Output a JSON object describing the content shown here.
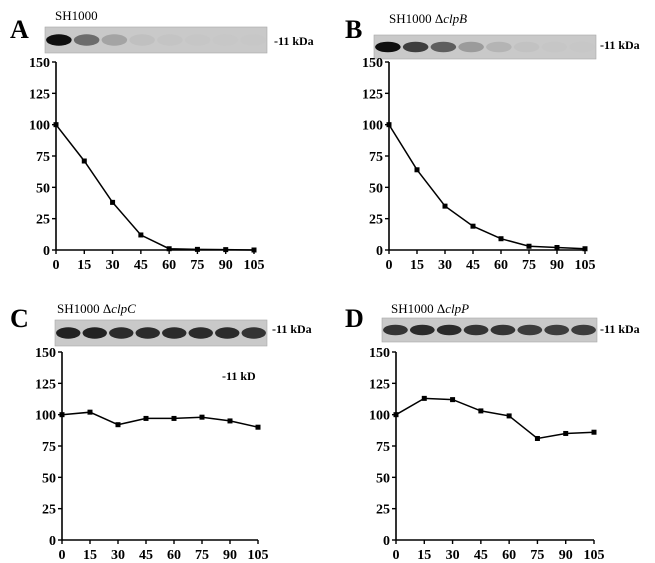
{
  "chart_data": [
    {
      "type": "line",
      "panel": "A",
      "strain": "SH1000",
      "strain_gene": "",
      "blot_label": "-11 kDa",
      "x": [
        0,
        15,
        30,
        45,
        60,
        75,
        90,
        105
      ],
      "values": [
        100,
        71,
        38,
        12,
        1,
        0.5,
        0.3,
        0
      ],
      "xticks": [
        "0",
        "15",
        "30",
        "45",
        "60",
        "75",
        "90",
        "105"
      ],
      "yticks": [
        "0",
        "25",
        "50",
        "75",
        "100",
        "125",
        "150"
      ],
      "xlim": [
        0,
        105
      ],
      "ylim": [
        0,
        150
      ],
      "band_intensity": [
        1.0,
        0.55,
        0.3,
        0.1,
        0.05,
        0.03,
        0.02,
        0.01
      ]
    },
    {
      "type": "line",
      "panel": "B",
      "strain": "SH1000 Δ",
      "strain_gene": "clpB",
      "blot_label": "-11 kDa",
      "x": [
        0,
        15,
        30,
        45,
        60,
        75,
        90,
        105
      ],
      "values": [
        100,
        64,
        35,
        19,
        9,
        3,
        2,
        1
      ],
      "xticks": [
        "0",
        "15",
        "30",
        "45",
        "60",
        "75",
        "90",
        "105"
      ],
      "yticks": [
        "0",
        "25",
        "50",
        "75",
        "100",
        "125",
        "150"
      ],
      "xlim": [
        0,
        105
      ],
      "ylim": [
        0,
        150
      ],
      "band_intensity": [
        1.0,
        0.75,
        0.6,
        0.35,
        0.2,
        0.08,
        0.04,
        0.02
      ]
    },
    {
      "type": "line",
      "panel": "C",
      "strain": "SH1000 Δ",
      "strain_gene": "clpC",
      "blot_label": "-11 kDa",
      "annotation": "-11 kD",
      "x": [
        0,
        15,
        30,
        45,
        60,
        75,
        90,
        105
      ],
      "values": [
        100,
        102,
        92,
        97,
        97,
        98,
        95,
        90
      ],
      "xticks": [
        "0",
        "15",
        "30",
        "45",
        "60",
        "75",
        "90",
        "105"
      ],
      "yticks": [
        "0",
        "25",
        "50",
        "75",
        "100",
        "125",
        "150"
      ],
      "xlim": [
        0,
        105
      ],
      "ylim": [
        0,
        150
      ],
      "band_intensity": [
        0.9,
        0.9,
        0.85,
        0.85,
        0.85,
        0.85,
        0.85,
        0.8
      ]
    },
    {
      "type": "line",
      "panel": "D",
      "strain": "SH1000 Δ",
      "strain_gene": "clpP",
      "blot_label": "-11 kDa",
      "x": [
        0,
        15,
        30,
        45,
        60,
        75,
        90,
        105
      ],
      "values": [
        100,
        113,
        112,
        103,
        99,
        81,
        85,
        86
      ],
      "xticks": [
        "0",
        "15",
        "30",
        "45",
        "60",
        "75",
        "90",
        "105"
      ],
      "yticks": [
        "0",
        "25",
        "50",
        "75",
        "100",
        "125",
        "150"
      ],
      "xlim": [
        0,
        105
      ],
      "ylim": [
        0,
        150
      ],
      "band_intensity": [
        0.8,
        0.85,
        0.85,
        0.8,
        0.8,
        0.75,
        0.75,
        0.75
      ]
    }
  ]
}
